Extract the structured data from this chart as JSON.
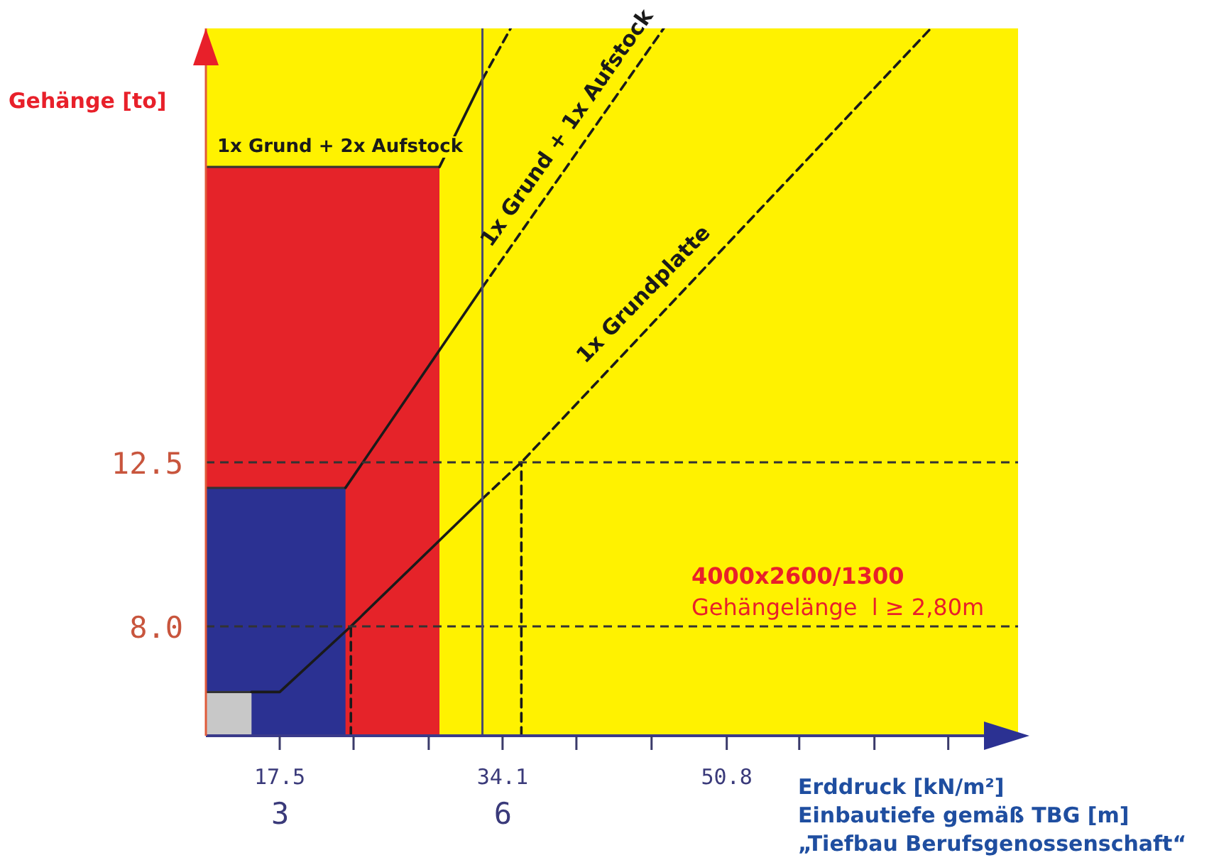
{
  "chart_data": {
    "type": "line",
    "ylabel": "Gehänge [to]",
    "xlabel": "Erddruck [kN/m²]",
    "x2label": "Einbautiefe gemäß TBG [m]",
    "xlim": [
      12,
      72.5
    ],
    "xticks": [
      17.5,
      {
        "value": 23.0,
        "label": null
      },
      {
        "value": 28.6,
        "label": null
      },
      34.1,
      {
        "value": 39.6,
        "label": null
      },
      {
        "value": 45.2,
        "label": null
      },
      50.8,
      {
        "value": 56.2,
        "label": null
      },
      {
        "value": 61.8,
        "label": null
      },
      {
        "value": 67.3,
        "label": null
      }
    ],
    "x2lim": [
      2,
      12.94
    ],
    "x2ticks": [
      3,
      6
    ],
    "ylim": [
      5,
      24.4
    ],
    "yticks": [
      {
        "value": 8,
        "label": "8.0"
      },
      {
        "value": 12.5,
        "label": "12.5"
      }
    ],
    "bands": [
      {
        "axis": "x",
        "from": 12,
        "to": 72.5,
        "color": "#fff200"
      }
    ],
    "ref_lines": [
      {
        "axis": "y",
        "value": 12.5,
        "color": "#333333",
        "line_style": "dashed"
      },
      {
        "axis": "y",
        "value": 8,
        "color": "#333333",
        "line_style": "dashed"
      },
      {
        "axis": "x",
        "value": 32.6,
        "color": "#4a4a6e",
        "line_style": "solid"
      }
    ],
    "marker": "none",
    "series": [
      {
        "type": "area",
        "color": "#e52329",
        "x": [
          12,
          29.4
        ],
        "values": [
          20.6,
          20.6
        ]
      },
      {
        "type": "area",
        "color": "#2b3192",
        "x": [
          12,
          22.4
        ],
        "values": [
          11.8,
          11.8
        ]
      },
      {
        "type": "area",
        "color": "#c8c8c8",
        "x": [
          12,
          15.4
        ],
        "values": [
          6.2,
          6.2
        ]
      },
      {
        "type": "line",
        "color": "#1a1a1a",
        "line_style": "solid",
        "x": [
          15.4,
          17.5,
          22.8,
          32.6
        ],
        "values": [
          6.2,
          6.2,
          8.0,
          11.5
        ]
      },
      {
        "type": "line",
        "color": "#1a1a1a",
        "line_style": "dashed",
        "x": [
          32.6,
          35.5,
          66
        ],
        "values": [
          11.5,
          12.5,
          24.4
        ]
      },
      {
        "type": "line",
        "color": "#1a1a1a",
        "line_style": "solid",
        "x": [
          22.4,
          32.6
        ],
        "values": [
          11.8,
          17.3
        ]
      },
      {
        "type": "line",
        "color": "#1a1a1a",
        "line_style": "dashed",
        "x": [
          32.6,
          46.1
        ],
        "values": [
          17.3,
          24.4
        ]
      },
      {
        "type": "line",
        "color": "#1a1a1a",
        "line_style": "solid",
        "x": [
          29.4,
          32.6
        ],
        "values": [
          20.6,
          23.0
        ]
      },
      {
        "type": "line",
        "color": "#1a1a1a",
        "line_style": "dashed",
        "x": [
          32.6,
          34.7
        ],
        "values": [
          23.0,
          24.4
        ]
      },
      {
        "type": "line",
        "color": "#1a1a1a",
        "line_style": "dashed",
        "x": [
          22.8,
          22.8
        ],
        "values": [
          5,
          8
        ]
      },
      {
        "type": "line",
        "color": "#1a1a1a",
        "line_style": "dashed",
        "x": [
          35.5,
          35.5
        ],
        "values": [
          5,
          12.5
        ]
      }
    ],
    "annotations": [
      "1x Grund + 2x Aufstock",
      "1x Grund + 1x Aufstock",
      "1x Grundplatte",
      "4000x2600/1300",
      "Gehängelänge  l ≥ 2,80m",
      "„Tiefbau Berufsgenossenschaft“"
    ]
  }
}
